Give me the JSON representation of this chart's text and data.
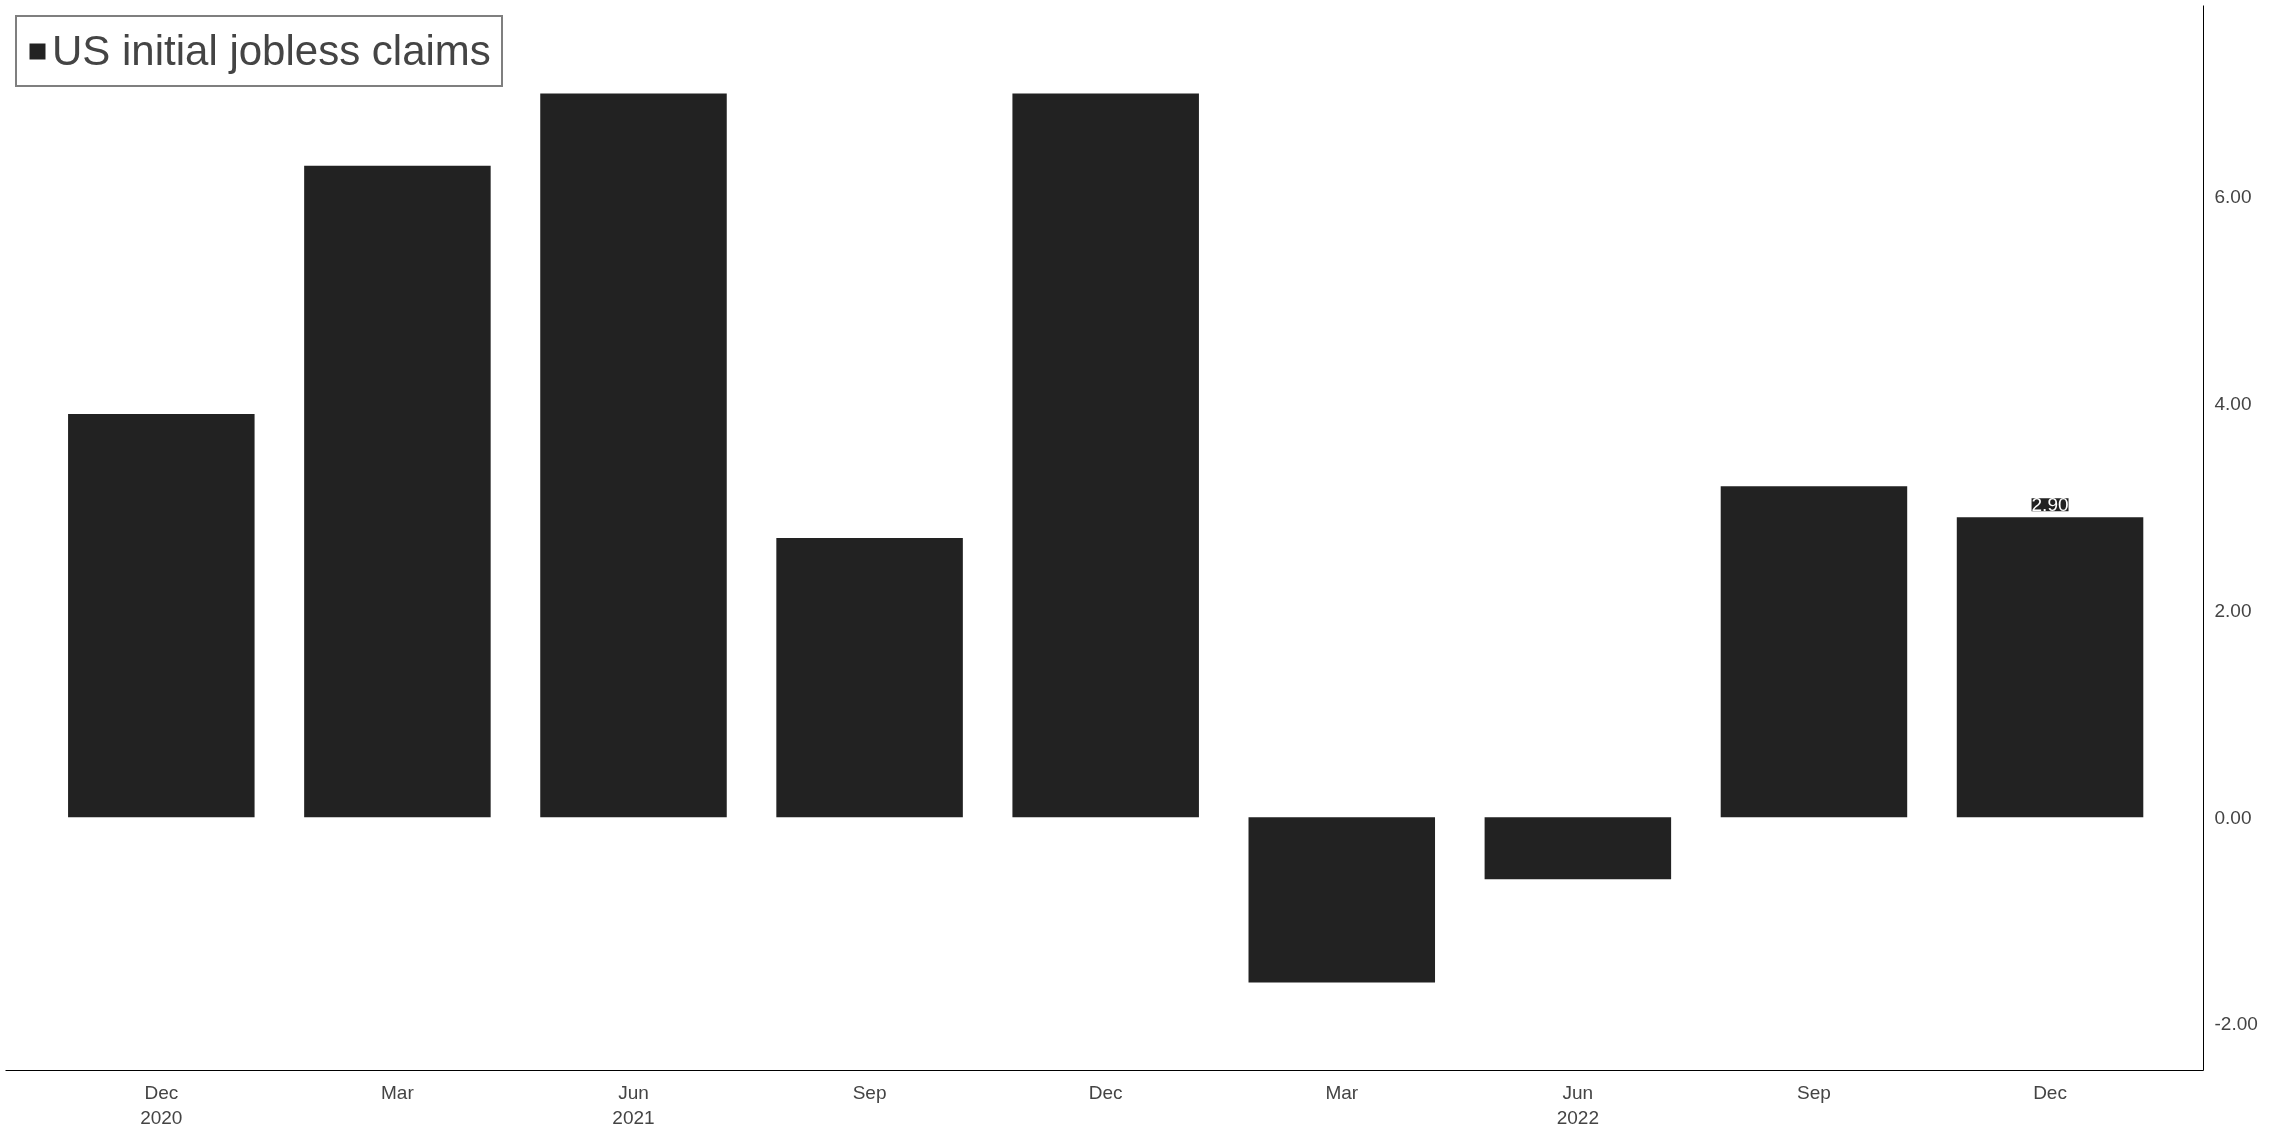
{
  "chart_data": {
    "type": "bar",
    "categories": [
      "Dec\n2020",
      "Mar",
      "Jun\n2021",
      "Sep",
      "Dec",
      "Mar",
      "Jun\n2022",
      "Sep",
      "Dec"
    ],
    "series": [
      {
        "name": "US initial jobless claims",
        "color": "#222222",
        "values": [
          3.9,
          6.3,
          7.0,
          2.7,
          7.0,
          -1.6,
          -0.6,
          3.2,
          2.9
        ],
        "value_labels": [
          null,
          null,
          null,
          null,
          null,
          null,
          null,
          null,
          "2.90"
        ]
      }
    ],
    "ylim": [
      -2.45,
      7.85
    ],
    "yticks": [
      {
        "value": -2,
        "label": "-2.00"
      },
      {
        "value": 0,
        "label": "0.00"
      },
      {
        "value": 2,
        "label": "2.00"
      },
      {
        "value": 4,
        "label": "4.00"
      },
      {
        "value": 6,
        "label": "6.00"
      }
    ],
    "grid": false,
    "legend": "top left"
  }
}
